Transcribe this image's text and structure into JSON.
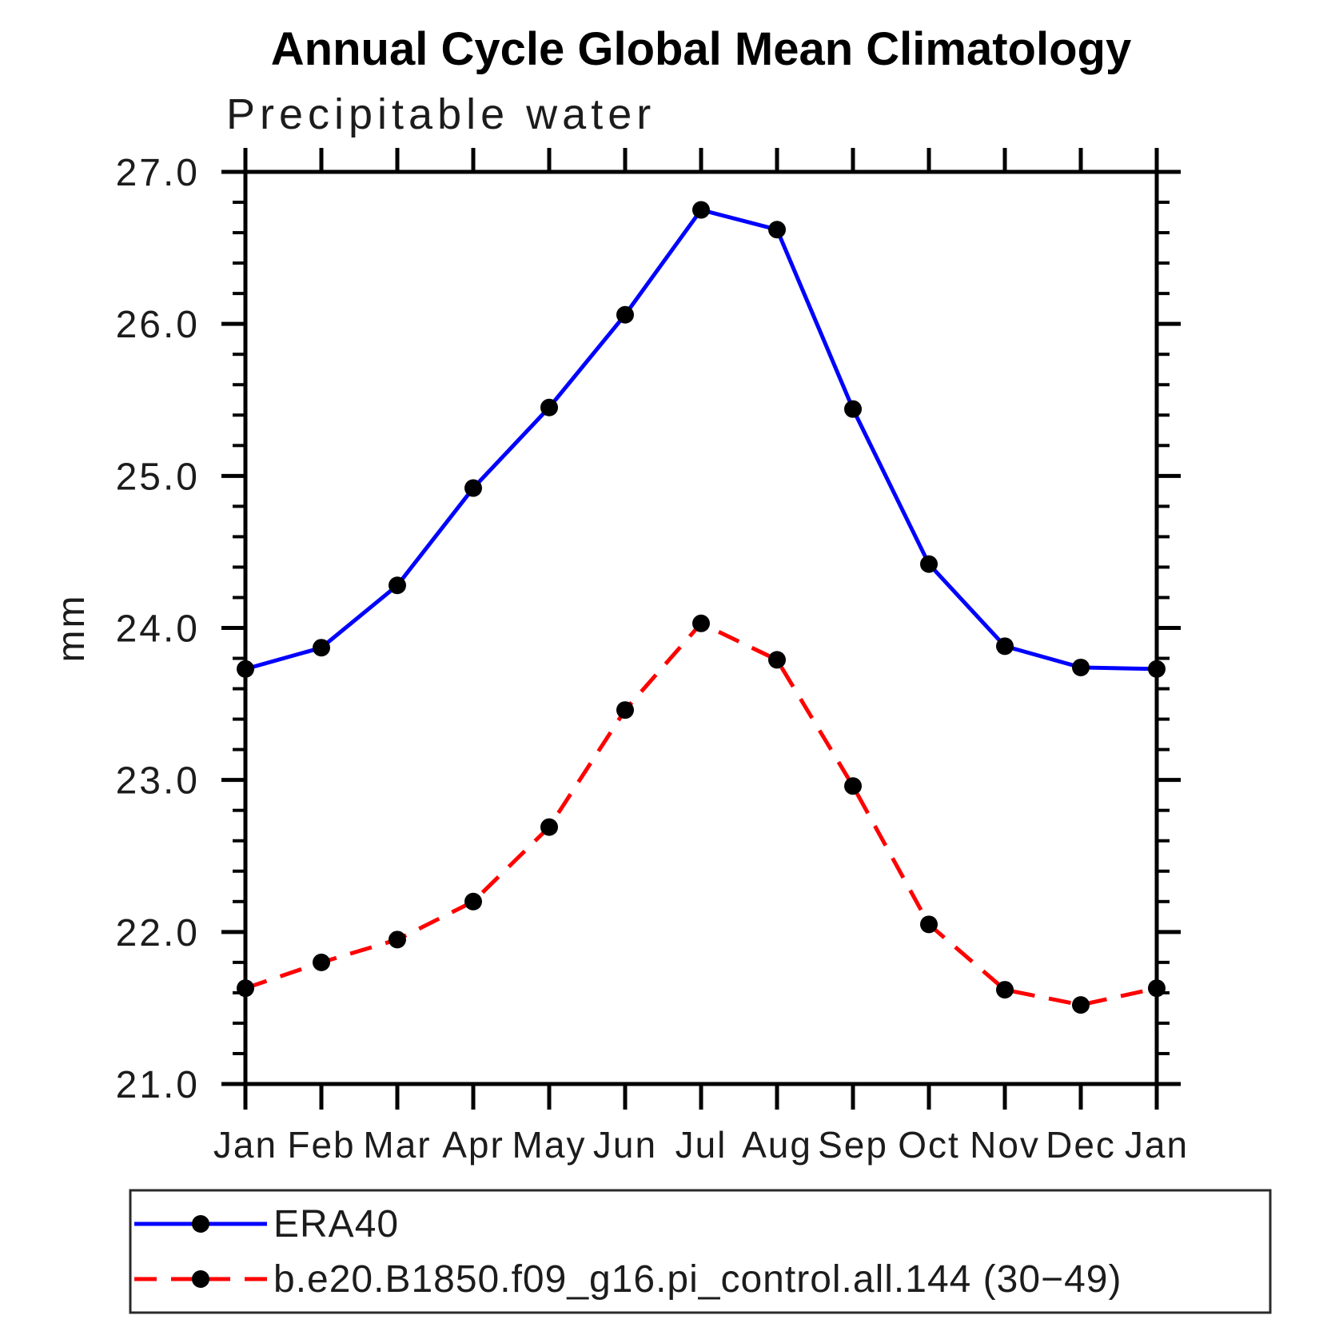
{
  "chart_data": {
    "type": "line",
    "title": "Annual Cycle Global Mean Climatology",
    "subtitle": "Precipitable water",
    "ylabel": "mm",
    "xlabel": "",
    "categories": [
      "Jan",
      "Feb",
      "Mar",
      "Apr",
      "May",
      "Jun",
      "Jul",
      "Aug",
      "Sep",
      "Oct",
      "Nov",
      "Dec",
      "Jan"
    ],
    "ylim": [
      21.0,
      27.0
    ],
    "ytick_major_step": 1.0,
    "ytick_minor_step": 0.2,
    "y_tick_labels": [
      "21.0",
      "22.0",
      "23.0",
      "24.0",
      "25.0",
      "26.0",
      "27.0"
    ],
    "grid": "off",
    "legend_position": "bottom-left-box",
    "axis_color": "#000000",
    "marker": {
      "shape": "circle",
      "color": "#000000",
      "radius": 11
    },
    "series": [
      {
        "name": "ERA40",
        "color": "#0000ff",
        "line_style": "solid",
        "values": [
          23.73,
          23.87,
          24.28,
          24.92,
          25.45,
          26.06,
          26.75,
          26.62,
          25.44,
          24.42,
          23.88,
          23.74,
          23.73
        ]
      },
      {
        "name": "b.e20.B1850.f09_g16.pi_control.all.144 (30−49)",
        "color": "#ff0000",
        "line_style": "dashed",
        "values": [
          21.63,
          21.8,
          21.95,
          22.2,
          22.69,
          23.46,
          24.03,
          23.79,
          22.96,
          22.05,
          21.62,
          21.52,
          21.63
        ]
      }
    ]
  }
}
